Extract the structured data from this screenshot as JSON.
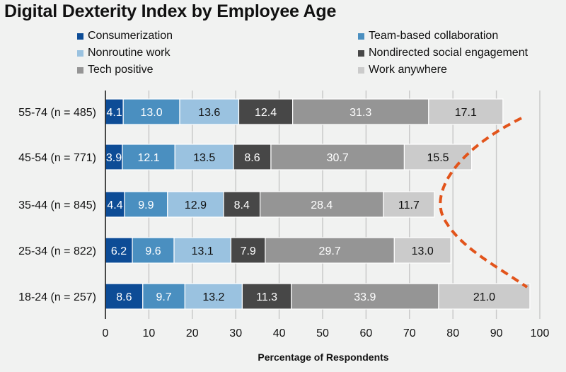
{
  "chart_data": {
    "type": "bar",
    "orientation": "horizontal",
    "stacked": true,
    "title": "Digital Dexterity Index by Employee Age",
    "xlabel": "Percentage of Respondents",
    "ylabel": "",
    "xlim": [
      0,
      100
    ],
    "xticks": [
      0,
      10,
      20,
      30,
      40,
      50,
      60,
      70,
      80,
      90,
      100
    ],
    "grid": true,
    "legend_position": "top",
    "categories": [
      "55-74 (n = 485)",
      "45-54 (n = 771)",
      "35-44 (n = 845)",
      "25-34 (n = 822)",
      "18-24 (n = 257)"
    ],
    "series": [
      {
        "name": "Consumerization",
        "color": "#0d4c96",
        "label_color": "#ffffff",
        "values": [
          4.1,
          3.9,
          4.4,
          6.2,
          8.6
        ]
      },
      {
        "name": "Team-based collaboration",
        "color": "#4a8fc0",
        "label_color": "#ffffff",
        "values": [
          13.0,
          12.1,
          9.9,
          9.6,
          9.7
        ]
      },
      {
        "name": "Nonroutine work",
        "color": "#9ac2e0",
        "label_color": "#111111",
        "values": [
          13.6,
          13.5,
          12.9,
          13.1,
          13.2
        ]
      },
      {
        "name": "Nondirected social engagement",
        "color": "#474747",
        "label_color": "#ffffff",
        "values": [
          12.4,
          8.6,
          8.4,
          7.9,
          11.3
        ]
      },
      {
        "name": "Tech positive",
        "color": "#959595",
        "label_color": "#ffffff",
        "values": [
          31.3,
          30.7,
          28.4,
          29.7,
          33.9
        ]
      },
      {
        "name": "Work anywhere",
        "color": "#cbcbcb",
        "label_color": "#111111",
        "values": [
          17.1,
          15.5,
          11.7,
          13.0,
          21.0
        ]
      }
    ],
    "annotation": {
      "type": "dashed-curve",
      "color": "#e2541b",
      "description": "parabolic trend curve bulging left around 35-44 group"
    }
  }
}
